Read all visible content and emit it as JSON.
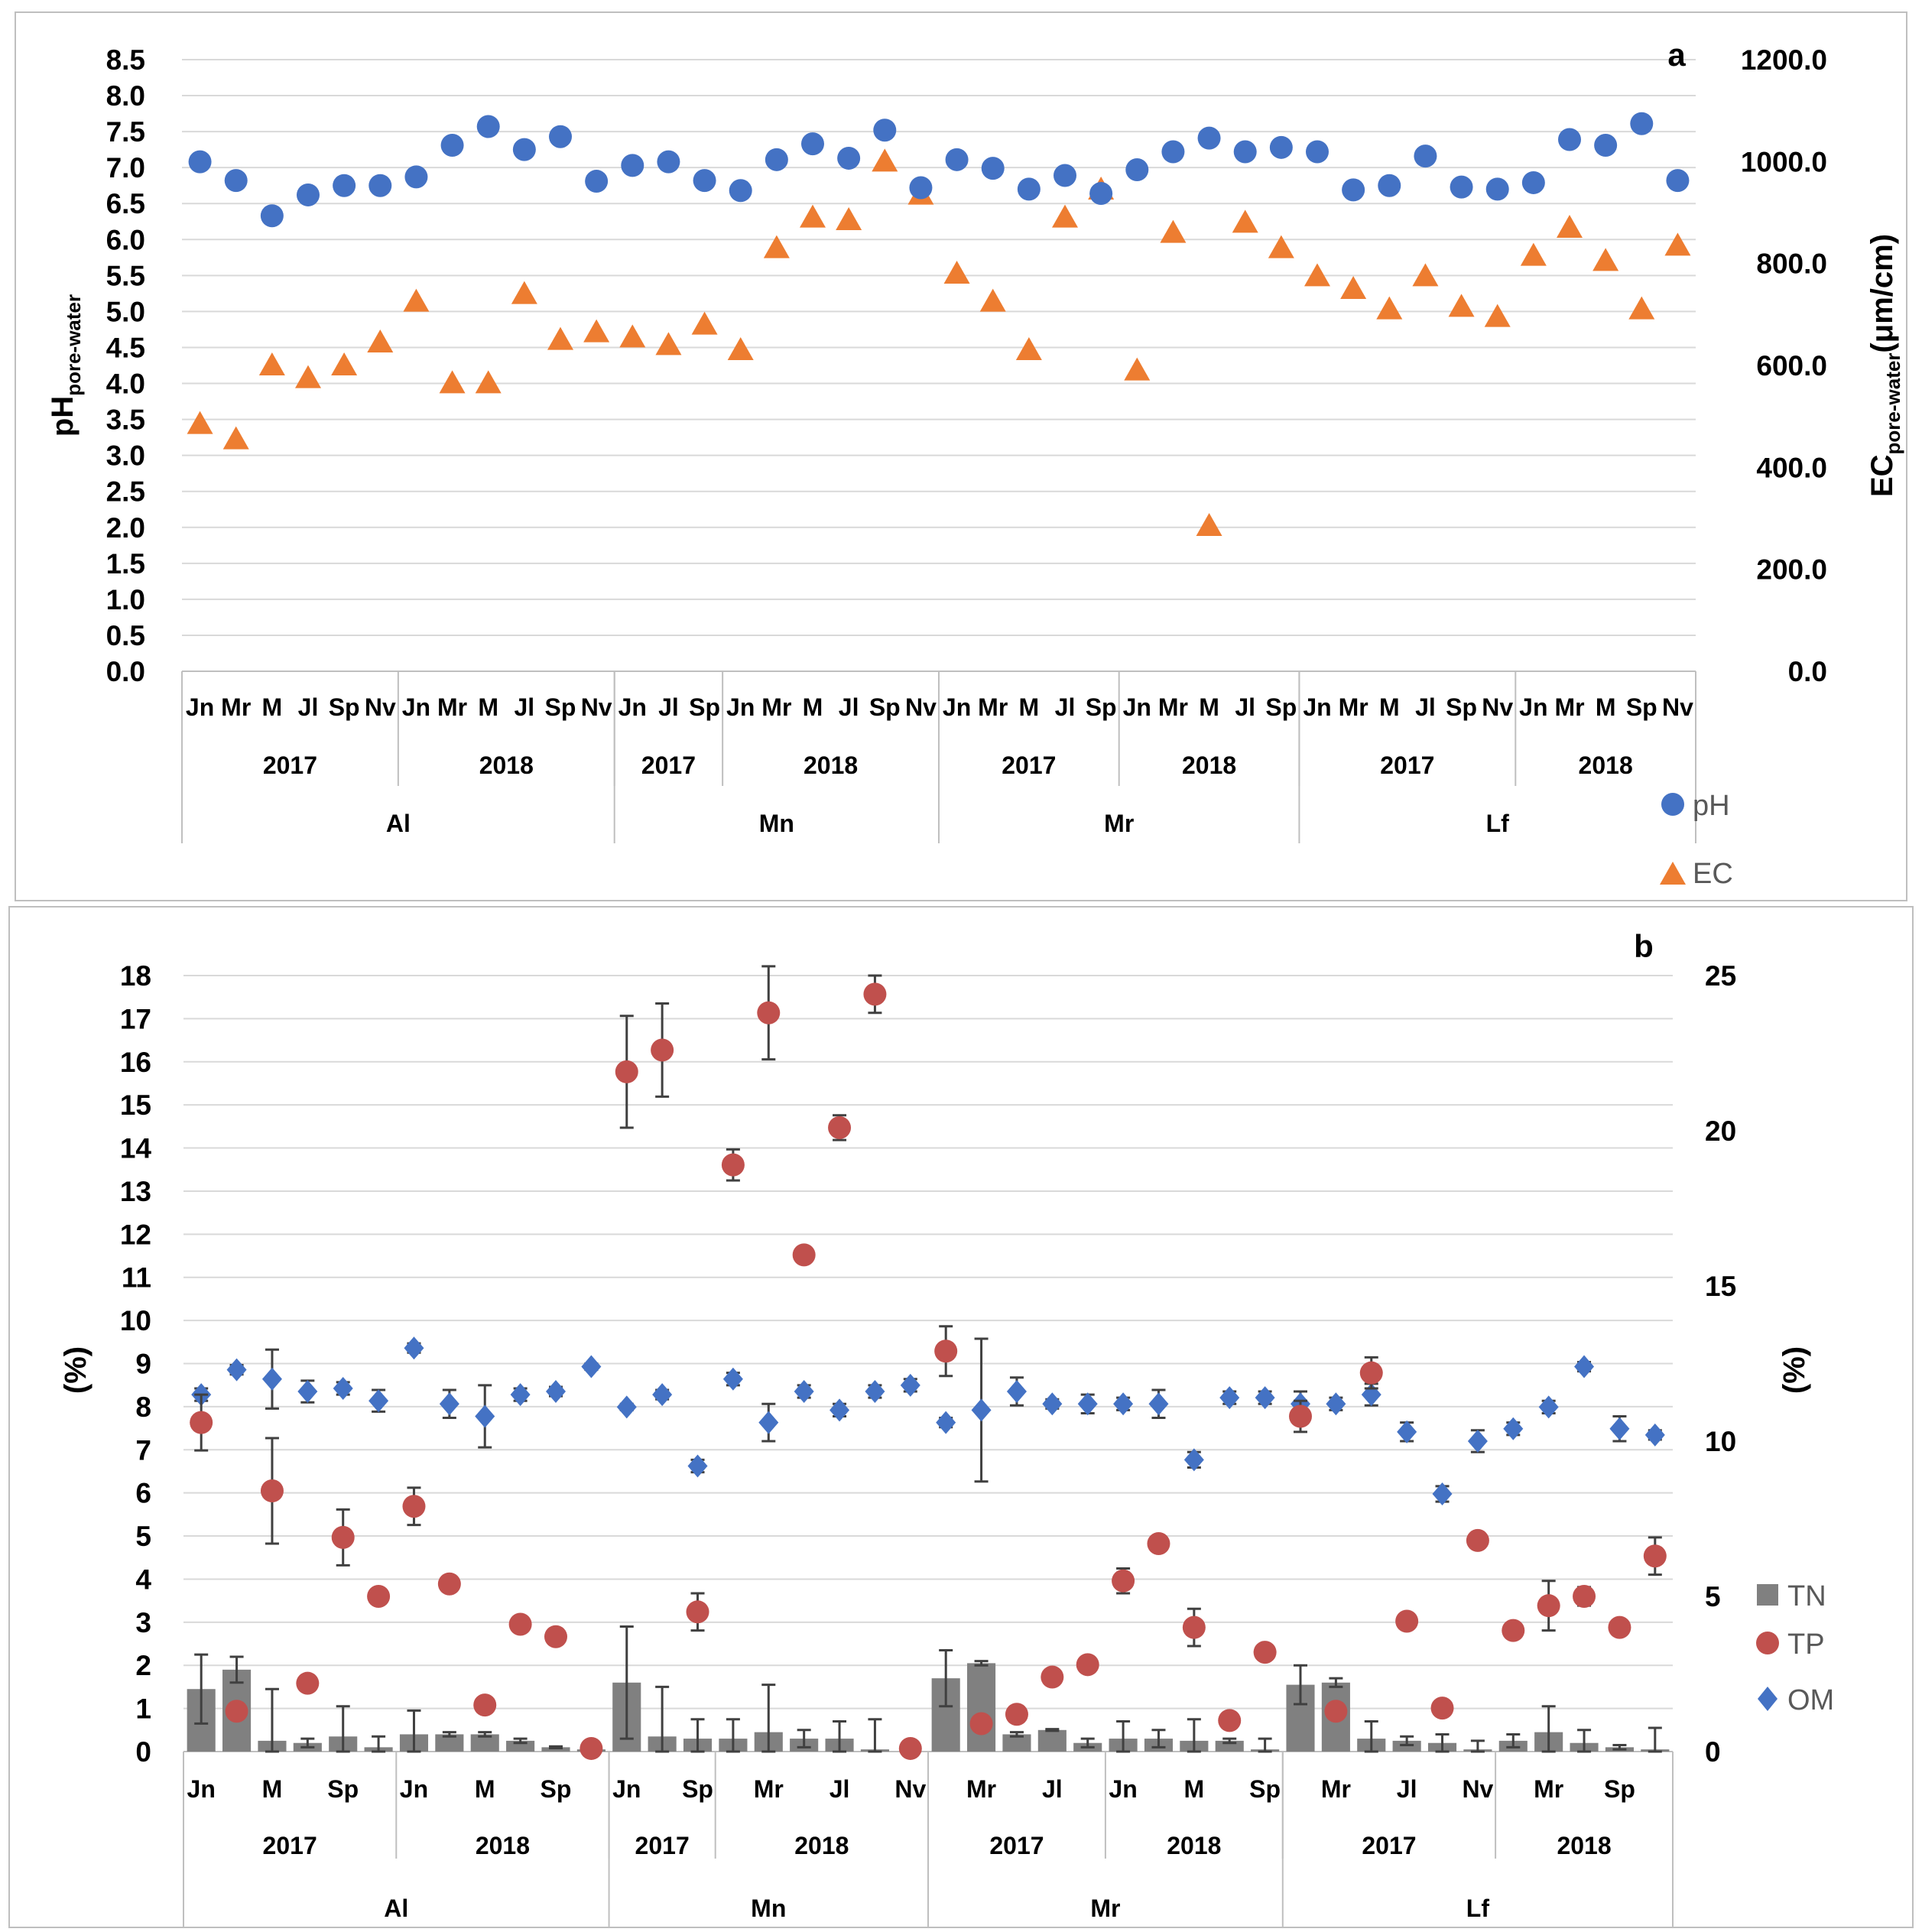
{
  "colors": {
    "ph": "#4472C4",
    "ec": "#ED7D31",
    "tn": "#808080",
    "tp": "#C0504D",
    "om": "#4472C4",
    "grid": "#D9D9D9",
    "frame": "#BFBFBF",
    "errbar": "#404040"
  },
  "chart_data": [
    {
      "type": "scatter",
      "panel_label": "a",
      "ylabel_base": "pH",
      "ylabel_sub": "pore-water",
      "y2label_base": "EC",
      "y2label_sub": "pore-water",
      "y2label_unit": "(μm/cm)",
      "ylim": [
        0,
        8.5
      ],
      "yticks": [
        "8.5",
        "8.0",
        "7.5",
        "7.0",
        "6.5",
        "6.0",
        "5.5",
        "5.0",
        "4.5",
        "4.0",
        "3.5",
        "3.0",
        "2.5",
        "2.0",
        "1.5",
        "1.0",
        "0.5",
        "0.0"
      ],
      "y2lim": [
        0,
        1200
      ],
      "y2ticks": [
        "1200.0",
        "1000.0",
        "800.0",
        "600.0",
        "400.0",
        "200.0",
        "0.0"
      ],
      "months": [
        "Jn",
        "Mr",
        "M",
        "Jl",
        "Sp",
        "Nv",
        "Jn",
        "Mr",
        "M",
        "Jl",
        "Sp",
        "Nv",
        "Jn",
        "Jl",
        "Sp",
        "Jn",
        "Mr",
        "M",
        "Jl",
        "Sp",
        "Nv",
        "Jn",
        "Mr",
        "M",
        "Jl",
        "Sp",
        "Jn",
        "Mr",
        "M",
        "Jl",
        "Sp",
        "Jn",
        "Mr",
        "M",
        "Jl",
        "Sp",
        "Nv",
        "Jn",
        "Mr",
        "M",
        "Sp",
        "Nv"
      ],
      "years": [
        {
          "label": "2017",
          "count": 6
        },
        {
          "label": "2018",
          "count": 6
        },
        {
          "label": "2017",
          "count": 3
        },
        {
          "label": "2018",
          "count": 6
        },
        {
          "label": "2017",
          "count": 5
        },
        {
          "label": "2018",
          "count": 5
        },
        {
          "label": "2017",
          "count": 6
        },
        {
          "label": "2018",
          "count": 5
        }
      ],
      "sites": [
        {
          "label": "Al",
          "count": 12
        },
        {
          "label": "Mn",
          "count": 9
        },
        {
          "label": "Mr",
          "count": 10
        },
        {
          "label": "Lf",
          "count": 11
        }
      ],
      "series": [
        {
          "name": "pH",
          "axis": "left",
          "marker": "circle",
          "values": [
            7.08,
            6.82,
            6.33,
            6.62,
            6.75,
            6.75,
            6.87,
            7.31,
            7.57,
            7.25,
            7.43,
            6.81,
            7.03,
            7.08,
            6.82,
            6.68,
            7.11,
            7.33,
            7.13,
            7.52,
            6.72,
            7.11,
            6.99,
            6.7,
            6.89,
            6.64,
            6.97,
            7.22,
            7.41,
            7.22,
            7.28,
            7.22,
            6.69,
            6.75,
            7.16,
            6.73,
            6.7,
            6.79,
            7.39,
            7.31,
            7.61,
            6.82
          ]
        },
        {
          "name": "EC",
          "axis": "right",
          "marker": "triangle",
          "values": [
            485,
            455,
            600,
            575,
            600,
            645,
            725,
            565,
            565,
            740,
            650,
            665,
            655,
            640,
            680,
            630,
            830,
            890,
            885,
            1000,
            935,
            780,
            725,
            630,
            890,
            945,
            590,
            860,
            285,
            880,
            830,
            775,
            750,
            710,
            775,
            715,
            695,
            815,
            870,
            805,
            710,
            835
          ]
        }
      ],
      "legend": [
        {
          "name": "pH",
          "marker": "circle"
        },
        {
          "name": "EC",
          "marker": "triangle"
        }
      ]
    },
    {
      "type": "bar+scatter",
      "panel_label": "b",
      "ylabel": "(%)",
      "y2label": "(%)",
      "ylim": [
        0,
        18
      ],
      "yticks": [
        "18",
        "17",
        "16",
        "15",
        "14",
        "13",
        "12",
        "11",
        "10",
        "9",
        "8",
        "7",
        "6",
        "5",
        "4",
        "3",
        "2",
        "1",
        "0"
      ],
      "y2lim": [
        0,
        25
      ],
      "y2ticks": [
        "25",
        "20",
        "15",
        "10",
        "5",
        "0"
      ],
      "month_labels": [
        {
          "label": "Jn",
          "slot": 0
        },
        {
          "label": "M",
          "slot": 2
        },
        {
          "label": "Sp",
          "slot": 4
        },
        {
          "label": "Jn",
          "slot": 6
        },
        {
          "label": "M",
          "slot": 8
        },
        {
          "label": "Sp",
          "slot": 10
        },
        {
          "label": "Jn",
          "slot": 12
        },
        {
          "label": "Sp",
          "slot": 14
        },
        {
          "label": "Mr",
          "slot": 16
        },
        {
          "label": "Jl",
          "slot": 18
        },
        {
          "label": "Nv",
          "slot": 20
        },
        {
          "label": "Mr",
          "slot": 22
        },
        {
          "label": "Jl",
          "slot": 24
        },
        {
          "label": "Jn",
          "slot": 26
        },
        {
          "label": "M",
          "slot": 28
        },
        {
          "label": "Sp",
          "slot": 30
        },
        {
          "label": "Mr",
          "slot": 32
        },
        {
          "label": "Jl",
          "slot": 34
        },
        {
          "label": "Nv",
          "slot": 36
        },
        {
          "label": "Mr",
          "slot": 38
        },
        {
          "label": "Sp",
          "slot": 40
        }
      ],
      "years": [
        {
          "label": "2017",
          "count": 6
        },
        {
          "label": "2018",
          "count": 6
        },
        {
          "label": "2017",
          "count": 3
        },
        {
          "label": "2018",
          "count": 6
        },
        {
          "label": "2017",
          "count": 5
        },
        {
          "label": "2018",
          "count": 5
        },
        {
          "label": "2017",
          "count": 6
        },
        {
          "label": "2018",
          "count": 5
        }
      ],
      "sites": [
        {
          "label": "Al",
          "count": 12
        },
        {
          "label": "Mn",
          "count": 9
        },
        {
          "label": "Mr",
          "count": 10
        },
        {
          "label": "Lf",
          "count": 11
        }
      ],
      "series": [
        {
          "name": "TN",
          "type": "bar",
          "axis": "left",
          "values": [
            1.45,
            1.9,
            0.25,
            0.2,
            0.35,
            0.1,
            0.4,
            0.4,
            0.4,
            0.25,
            0.1,
            0.05,
            1.6,
            0.35,
            0.3,
            0.3,
            0.45,
            0.3,
            0.3,
            0.05,
            0.0,
            1.7,
            2.05,
            0.4,
            0.5,
            0.2,
            0.3,
            0.3,
            0.25,
            0.25,
            0.05,
            1.55,
            1.6,
            0.3,
            0.25,
            0.2,
            0.05,
            0.25,
            0.45,
            0.2,
            0.1,
            0.05
          ],
          "err": [
            0.8,
            0.3,
            1.2,
            0.1,
            0.7,
            0.25,
            0.55,
            0.05,
            0.05,
            0.05,
            0.02,
            0.0,
            1.3,
            1.15,
            0.45,
            0.45,
            1.1,
            0.2,
            0.4,
            0.7,
            0.0,
            0.65,
            0.05,
            0.05,
            0.02,
            0.1,
            0.4,
            0.2,
            0.5,
            0.05,
            0.25,
            0.45,
            0.1,
            0.4,
            0.1,
            0.2,
            0.2,
            0.15,
            0.6,
            0.3,
            0.05,
            0.5
          ]
        },
        {
          "name": "TP",
          "type": "scatter",
          "axis": "right",
          "marker": "circle",
          "values": [
            10.6,
            1.3,
            8.4,
            2.2,
            6.9,
            5.0,
            7.9,
            5.4,
            1.5,
            4.1,
            3.7,
            0.1,
            21.9,
            22.6,
            4.5,
            18.9,
            23.8,
            16.0,
            20.1,
            24.4,
            0.1,
            12.9,
            0.9,
            1.2,
            2.4,
            2.8,
            5.5,
            6.7,
            4.0,
            1.0,
            3.2,
            10.8,
            1.3,
            12.2,
            4.2,
            1.4,
            6.8,
            3.9,
            4.7,
            5.0,
            4.0,
            6.3
          ],
          "err": [
            0.9,
            0.2,
            1.7,
            0.1,
            0.9,
            0.2,
            0.6,
            0.1,
            0.1,
            0.1,
            0.1,
            0.05,
            1.8,
            1.5,
            0.6,
            0.5,
            1.5,
            0.2,
            0.4,
            0.6,
            0.05,
            0.8,
            0.05,
            0.1,
            0.1,
            0.1,
            0.4,
            0.2,
            0.6,
            0.1,
            0.2,
            0.5,
            0.2,
            0.5,
            0.2,
            0.1,
            0.2,
            0.2,
            0.8,
            0.3,
            0.2,
            0.6
          ]
        },
        {
          "name": "OM",
          "type": "scatter",
          "axis": "right",
          "marker": "diamond",
          "values": [
            11.5,
            12.3,
            12.0,
            11.6,
            11.7,
            11.3,
            13.0,
            11.2,
            10.8,
            11.5,
            11.6,
            12.4,
            11.1,
            11.5,
            9.2,
            12.0,
            10.6,
            11.6,
            11.0,
            11.6,
            11.8,
            10.6,
            11.0,
            11.6,
            11.2,
            11.2,
            11.2,
            11.2,
            9.4,
            11.4,
            11.4,
            11.2,
            11.2,
            11.5,
            10.3,
            8.3,
            10.0,
            10.4,
            11.1,
            12.4,
            10.4,
            10.2
          ],
          "err": [
            0.2,
            0.15,
            0.95,
            0.35,
            0.2,
            0.35,
            0.15,
            0.45,
            1.0,
            0.2,
            0.15,
            0.1,
            0.1,
            0.15,
            0.2,
            0.2,
            0.6,
            0.2,
            0.2,
            0.2,
            0.2,
            0.15,
            2.3,
            0.45,
            0.15,
            0.3,
            0.2,
            0.45,
            0.25,
            0.2,
            0.2,
            0.4,
            0.2,
            0.35,
            0.3,
            0.25,
            0.35,
            0.2,
            0.2,
            0.15,
            0.4,
            0.15
          ]
        }
      ],
      "legend": [
        {
          "name": "TN",
          "marker": "square"
        },
        {
          "name": "TP",
          "marker": "circle"
        },
        {
          "name": "OM",
          "marker": "diamond"
        }
      ]
    }
  ]
}
